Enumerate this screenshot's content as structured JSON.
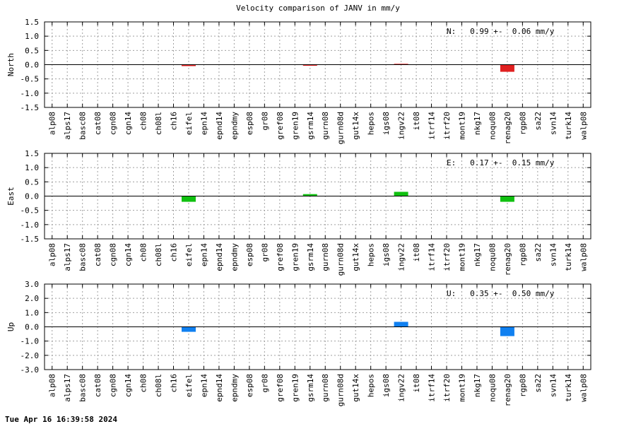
{
  "title": "Velocity comparison of JANV in mm/y",
  "footer": "Tue Apr 16 16:39:58 2024",
  "chart_data": {
    "type": "bar",
    "categories": [
      "alp08",
      "alps17",
      "basc08",
      "cat08",
      "cgn08",
      "cgn14",
      "ch08",
      "ch08l",
      "ch16",
      "eifel",
      "epn14",
      "epnd14",
      "epndmy",
      "esp08",
      "gr08",
      "gref08",
      "gren19",
      "gsrm14",
      "gurn08",
      "gurn08d",
      "gut14x",
      "hepos",
      "igs08",
      "ingv22",
      "it08",
      "itrf14",
      "itrf20",
      "mont19",
      "nkg17",
      "noqu08",
      "renag20",
      "rgp08",
      "sa22",
      "svn14",
      "turk14",
      "walp08"
    ],
    "grid": true,
    "panels": [
      {
        "ylabel": "North",
        "ylim": [
          -1.5,
          1.5
        ],
        "yticks": [
          "1.5",
          "1.0",
          "0.5",
          "0.0",
          "-0.5",
          "-1.0",
          "-1.5"
        ],
        "ytick_values": [
          1.5,
          1.0,
          0.5,
          0.0,
          -0.5,
          -1.0,
          -1.5
        ],
        "annotation": "N:   0.99 +-  0.06 mm/y",
        "color": "#e02020",
        "values": {
          "eifel": -0.05,
          "gsrm14": -0.02,
          "ingv22": 0.03,
          "renag20": -0.25
        }
      },
      {
        "ylabel": "East",
        "ylim": [
          -1.5,
          1.5
        ],
        "yticks": [
          "1.5",
          "1.0",
          "0.5",
          "0.0",
          "-0.5",
          "-1.0",
          "-1.5"
        ],
        "ytick_values": [
          1.5,
          1.0,
          0.5,
          0.0,
          -0.5,
          -1.0,
          -1.5
        ],
        "annotation": "E:   0.17 +-  0.15 mm/y",
        "color": "#10c010",
        "values": {
          "eifel": -0.2,
          "gsrm14": 0.07,
          "ingv22": 0.15,
          "renag20": -0.2
        }
      },
      {
        "ylabel": "Up",
        "ylim": [
          -3.0,
          3.0
        ],
        "yticks": [
          "3.0",
          "2.0",
          "1.0",
          "0.0",
          "-1.0",
          "-2.0",
          "-3.0"
        ],
        "ytick_values": [
          3.0,
          2.0,
          1.0,
          0.0,
          -1.0,
          -2.0,
          -3.0
        ],
        "annotation": "U:   0.35 +-  0.50 mm/y",
        "color": "#1080f0",
        "values": {
          "eifel": -0.35,
          "ingv22": 0.35,
          "renag20": -0.65
        }
      }
    ]
  }
}
